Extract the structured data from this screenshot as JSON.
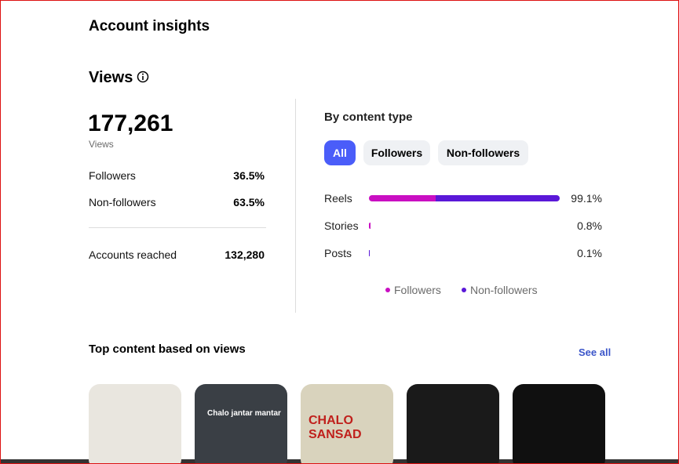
{
  "header": {
    "title": "Account insights"
  },
  "views": {
    "title": "Views",
    "total": "177,261",
    "total_label": "Views",
    "rows": [
      {
        "label": "Followers",
        "value": "36.5%"
      },
      {
        "label": "Non-followers",
        "value": "63.5%"
      }
    ],
    "reached": {
      "label": "Accounts reached",
      "value": "132,280"
    }
  },
  "content_type": {
    "title": "By content type",
    "tabs": [
      "All",
      "Followers",
      "Non-followers"
    ],
    "legend": [
      {
        "name": "Followers",
        "color": "#c90fc2"
      },
      {
        "name": "Non-followers",
        "color": "#5a18d8"
      }
    ],
    "rows": [
      {
        "label": "Reels",
        "value_label": "99.1%",
        "segments": [
          34.7,
          64.4
        ]
      },
      {
        "label": "Stories",
        "value_label": "0.8%",
        "segments": [
          0.8,
          0
        ]
      },
      {
        "label": "Posts",
        "value_label": "0.1%",
        "segments": [
          0,
          0.1
        ]
      }
    ]
  },
  "top_content": {
    "title": "Top content based on views",
    "link": "See all",
    "thumbnails": [
      {
        "caption": null
      },
      {
        "caption": "Chalo jantar mantar"
      },
      {
        "caption": "CHALO SANSAD"
      },
      {
        "caption": null
      },
      {
        "caption": null
      }
    ]
  }
}
